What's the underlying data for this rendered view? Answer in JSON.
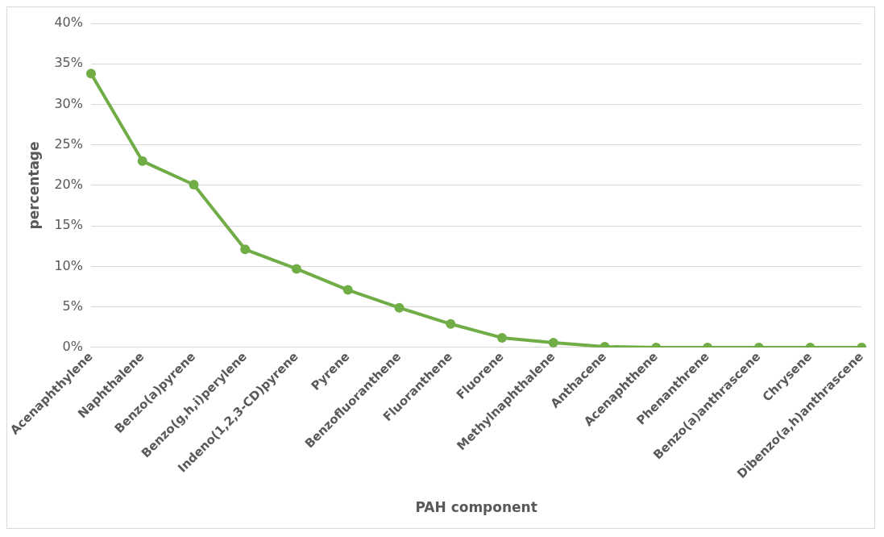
{
  "chart_data": {
    "type": "line",
    "xlabel": "PAH component",
    "ylabel": "percentage",
    "categories": [
      "Acenaphthylene",
      "Naphthalene",
      "Benzo(a)pyrene",
      "Benzo(g,h,i)perylene",
      "Indeno(1,2,3-CD)pyrene",
      "Pyrene",
      "Benzofluoranthene",
      "Fluoranthene",
      "Fluorene",
      "Methylnaphthalene",
      "Anthacene",
      "Acenaphthene",
      "Phenanthrene",
      "Benzo(a)anthrascene",
      "Chrysene",
      "Dibenzo(a,h)anthrascene"
    ],
    "series": [
      {
        "color": "#70ad47",
        "values": [
          33.8,
          23.0,
          20.1,
          12.1,
          9.7,
          7.1,
          4.9,
          2.9,
          1.2,
          0.6,
          0.1,
          0,
          0,
          0,
          0,
          0
        ]
      }
    ],
    "ylim": [
      0,
      40
    ],
    "yticks": [
      {
        "value": 0,
        "label": "0%"
      },
      {
        "value": 5,
        "label": "5%"
      },
      {
        "value": 10,
        "label": "10%"
      },
      {
        "value": 15,
        "label": "15%"
      },
      {
        "value": 20,
        "label": "20%"
      },
      {
        "value": 25,
        "label": "25%"
      },
      {
        "value": 30,
        "label": "30%"
      },
      {
        "value": 35,
        "label": "35%"
      },
      {
        "value": 40,
        "label": "40%"
      }
    ],
    "grid": "y",
    "legend": false,
    "marker": "circle",
    "line_style": "solid"
  }
}
